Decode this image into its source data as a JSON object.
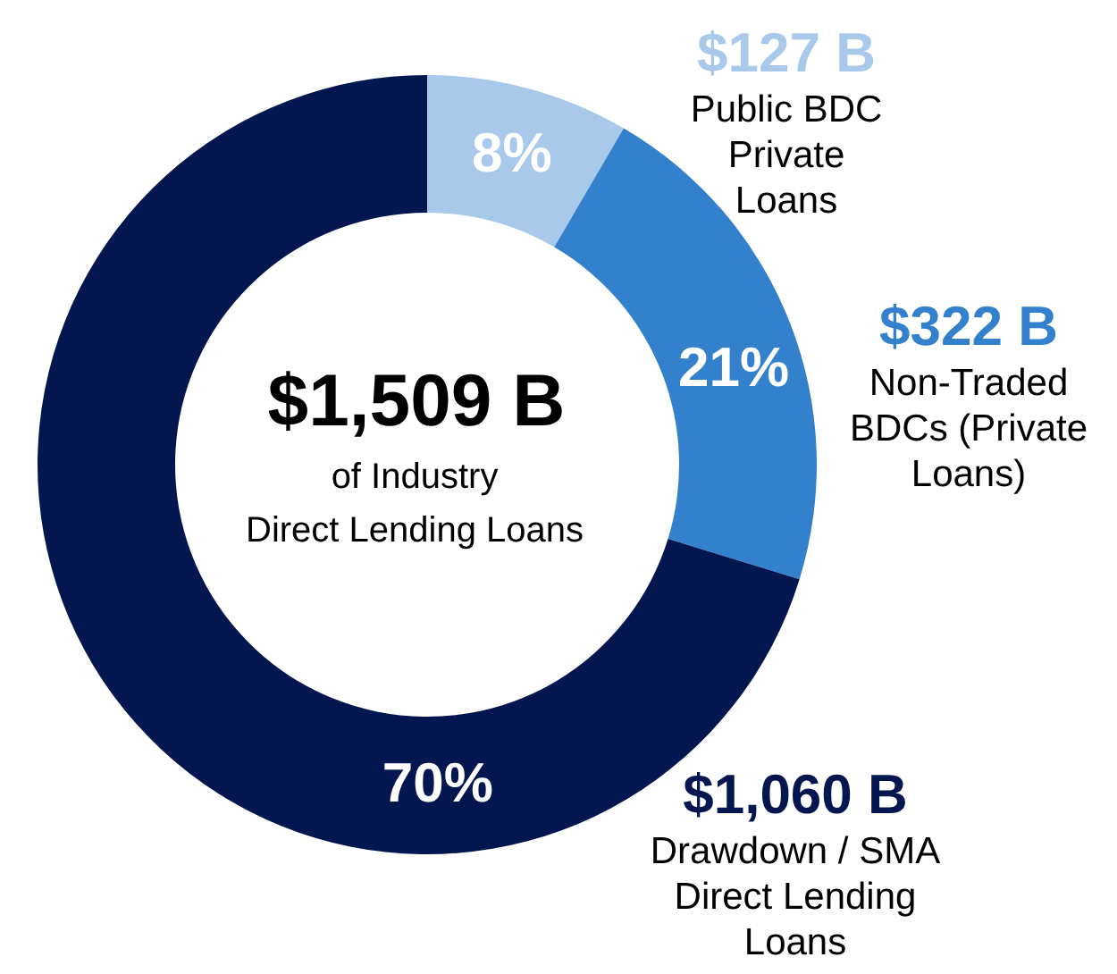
{
  "chart_data": {
    "type": "donut",
    "title": "$1,509 B",
    "subtitle": "of Industry Direct Lending Loans",
    "categories": [
      "Public BDC Private Loans",
      "Non-Traded BDCs (Private Loans)",
      "Drawdown / SMA Direct Lending Loans"
    ],
    "values": [
      127,
      322,
      1060
    ],
    "colors": [
      "#a9c9ea",
      "#3380cc",
      "#031650"
    ],
    "value_labels": [
      "$127 B",
      "$322 B",
      "$1,060 B"
    ],
    "annotations": [
      {
        "text": "8%",
        "x": "Public BDC Private Loans"
      },
      {
        "text": "21%",
        "x": "Non-Traded BDCs (Private Loans)"
      },
      {
        "text": "70%",
        "x": "Drawdown / SMA Direct Lending Loans"
      }
    ]
  }
}
